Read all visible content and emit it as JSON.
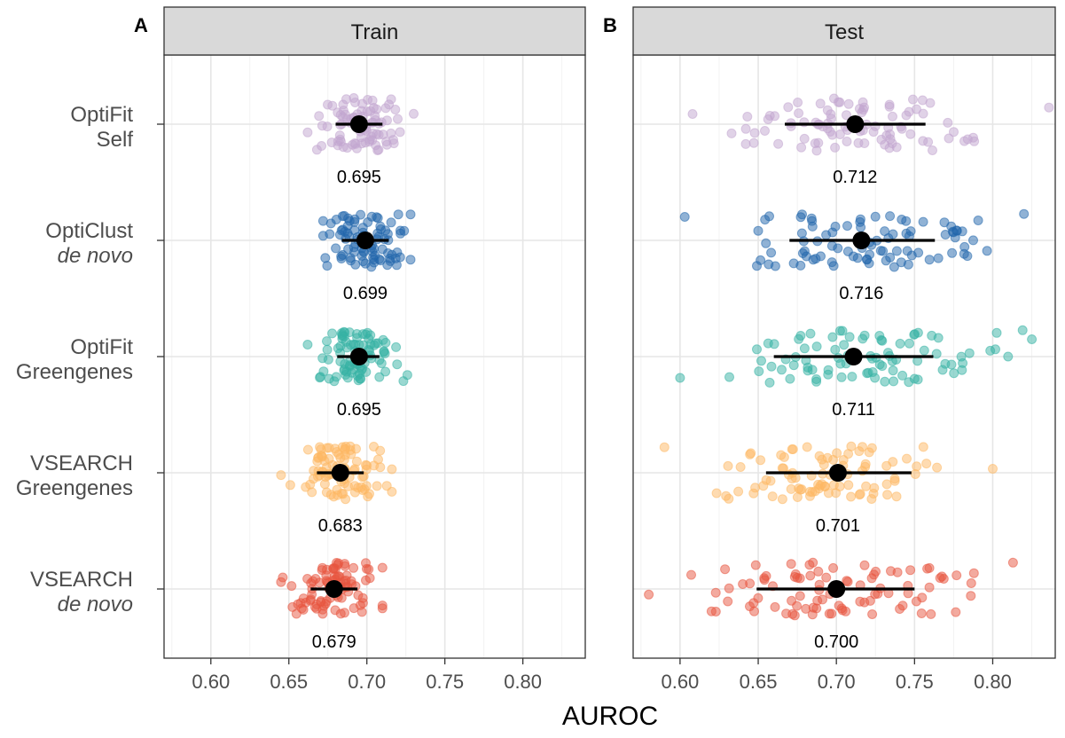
{
  "chart_data": {
    "type": "scatter",
    "xlabel": "AUROC",
    "xlim": [
      0.57,
      0.84
    ],
    "xticks": [
      "0.60",
      "0.65",
      "0.70",
      "0.75",
      "0.80"
    ],
    "grid": true,
    "categories": [
      {
        "line1": "OptiFit",
        "line2": "Self",
        "italic2": false,
        "color": "#C2A5CF"
      },
      {
        "line1": "OptiClust",
        "line2": "de novo",
        "italic2": true,
        "color": "#2166AC"
      },
      {
        "line1": "OptiFit",
        "line2": "Greengenes",
        "italic2": false,
        "color": "#35B2A4"
      },
      {
        "line1": "VSEARCH",
        "line2": "Greengenes",
        "italic2": false,
        "color": "#FDB863"
      },
      {
        "line1": "VSEARCH",
        "line2": "de novo",
        "italic2": true,
        "color": "#E8553F"
      }
    ],
    "panels": [
      {
        "tag": "A",
        "strip": "Train",
        "series": [
          {
            "median": 0.695,
            "low": 0.68,
            "high": 0.71,
            "label": "0.695",
            "min": 0.662,
            "max": 0.73,
            "n": 90
          },
          {
            "median": 0.699,
            "low": 0.684,
            "high": 0.714,
            "label": "0.699",
            "min": 0.672,
            "max": 0.728,
            "n": 90
          },
          {
            "median": 0.695,
            "low": 0.681,
            "high": 0.708,
            "label": "0.695",
            "min": 0.662,
            "max": 0.726,
            "n": 90
          },
          {
            "median": 0.683,
            "low": 0.668,
            "high": 0.698,
            "label": "0.683",
            "min": 0.645,
            "max": 0.716,
            "n": 90
          },
          {
            "median": 0.679,
            "low": 0.664,
            "high": 0.694,
            "label": "0.679",
            "min": 0.645,
            "max": 0.71,
            "n": 90
          }
        ]
      },
      {
        "tag": "B",
        "strip": "Test",
        "series": [
          {
            "median": 0.712,
            "low": 0.667,
            "high": 0.757,
            "label": "0.712",
            "min": 0.608,
            "max": 0.836,
            "n": 90
          },
          {
            "median": 0.716,
            "low": 0.67,
            "high": 0.763,
            "label": "0.716",
            "min": 0.603,
            "max": 0.82,
            "n": 90
          },
          {
            "median": 0.711,
            "low": 0.66,
            "high": 0.762,
            "label": "0.711",
            "min": 0.6,
            "max": 0.825,
            "n": 90
          },
          {
            "median": 0.701,
            "low": 0.655,
            "high": 0.748,
            "label": "0.701",
            "min": 0.59,
            "max": 0.8,
            "n": 90
          },
          {
            "median": 0.7,
            "low": 0.649,
            "high": 0.75,
            "label": "0.700",
            "min": 0.58,
            "max": 0.813,
            "n": 90
          }
        ]
      }
    ]
  }
}
